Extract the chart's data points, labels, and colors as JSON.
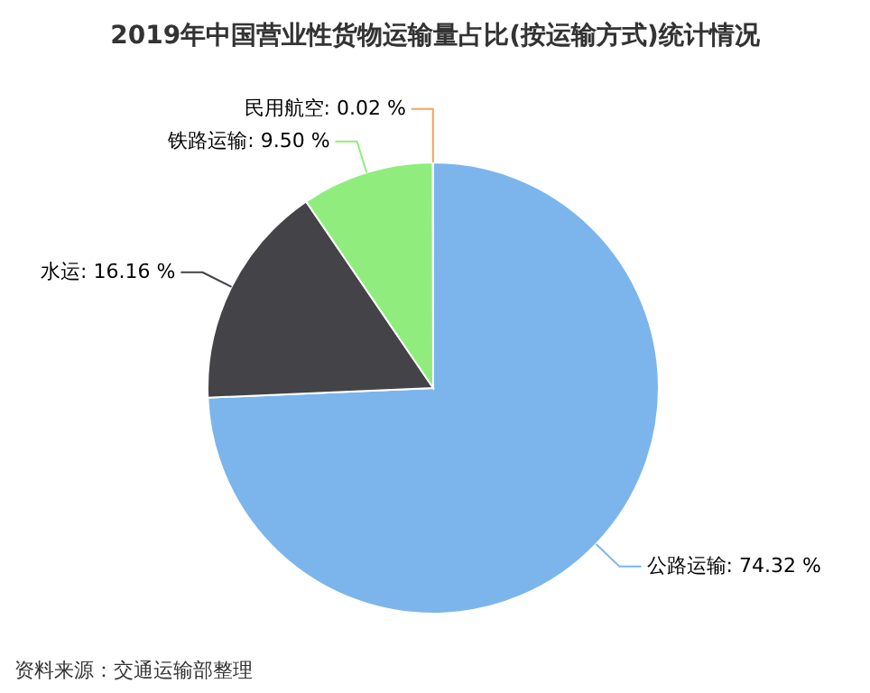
{
  "chart_data": {
    "type": "pie",
    "title": "2019年中国营业性货物运输量占比(按运输方式)统计情况",
    "categories": [
      "公路运输",
      "水运",
      "铁路运输",
      "民用航空"
    ],
    "values": [
      74.32,
      16.16,
      9.5,
      0.02
    ],
    "colors": [
      "#7cb5ec",
      "#434348",
      "#90ed7d",
      "#f7a35c"
    ],
    "value_labels": [
      "74.32 %",
      "16.16 %",
      "9.50 %",
      "0.02 %"
    ],
    "annotations": [
      "资料来源：交通运输部整理"
    ]
  }
}
